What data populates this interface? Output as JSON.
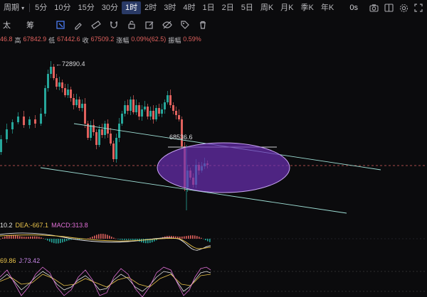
{
  "topbar": {
    "period_label": "周期",
    "intervals": [
      "5分",
      "10分",
      "15分",
      "30分",
      "1时",
      "2时",
      "3时",
      "4时",
      "1日",
      "2日",
      "5日",
      "周K",
      "月K",
      "季K",
      "年K"
    ],
    "active_interval": "1时",
    "seconds_label": "0s"
  },
  "toolbar": {
    "left_text_1": "太",
    "left_text_2": "筹"
  },
  "info": {
    "open_partial": "46.8",
    "high_label": "高",
    "high_value": "67842.9",
    "low_label": "低",
    "low_value": "67442.6",
    "close_label": "收",
    "close_value": "67509.2",
    "change_label": "涨幅",
    "change_value": "0.09%(62.5)",
    "amp_label": "振幅",
    "amp_value": "0.59%"
  },
  "chart": {
    "high_marker": "72890.4",
    "price_marker": "68536.6"
  },
  "macd": {
    "dif_partial": "10.2",
    "dea_label": "DEA:",
    "dea_value": "-667.1",
    "macd_label": "MACD:",
    "macd_value": "313.8"
  },
  "kdj": {
    "d_partial": "69.86",
    "j_label": "J:",
    "j_value": "73.42"
  },
  "colors": {
    "up": "#26a69a",
    "down": "#e0615d",
    "active_tab": "#2a3a66",
    "ellipse_fill": "#6b2fb5",
    "trendline": "#9fe0d6"
  }
}
